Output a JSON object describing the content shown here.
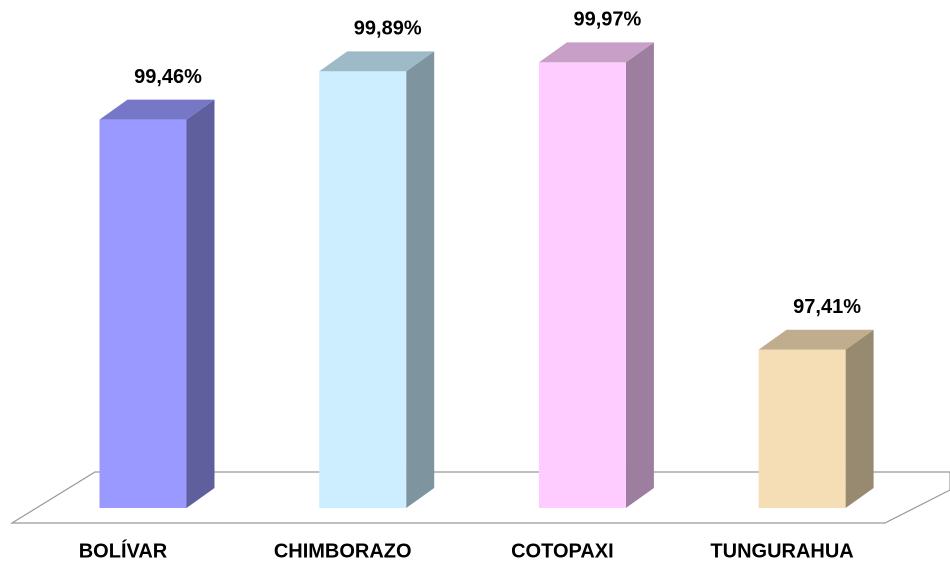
{
  "chart_data": {
    "type": "bar3d",
    "categories": [
      "BOLÍVAR",
      "CHIMBORAZO",
      "COTOPAXI",
      "TUNGURAHUA"
    ],
    "values": [
      99.46,
      99.89,
      99.97,
      97.41
    ],
    "value_labels": [
      "99,46%",
      "99,89%",
      "99,97%",
      "97,41%"
    ],
    "colors": [
      "#9999ff",
      "#cceeff",
      "#ffccff",
      "#f5deb5"
    ],
    "ylim": [
      96,
      100
    ]
  }
}
